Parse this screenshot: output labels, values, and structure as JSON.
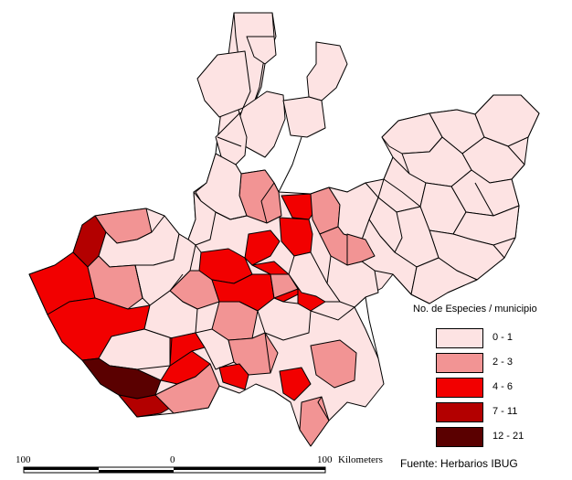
{
  "legend": {
    "title": "No. de Especies / municipio",
    "classes": [
      {
        "label": "0 - 1",
        "color": "#fde3e3"
      },
      {
        "label": "2 - 3",
        "color": "#f29494"
      },
      {
        "label": "4 - 6",
        "color": "#f20000"
      },
      {
        "label": "7 - 11",
        "color": "#b30000"
      },
      {
        "label": "12 - 21",
        "color": "#5a0000"
      }
    ]
  },
  "scale_bar": {
    "labels": [
      "100",
      "0",
      "100"
    ],
    "unit": "Kilometers"
  },
  "source": "Fuente: Herbarios IBUG",
  "colors": {
    "background": "#ffffff",
    "outline": "#000000"
  }
}
